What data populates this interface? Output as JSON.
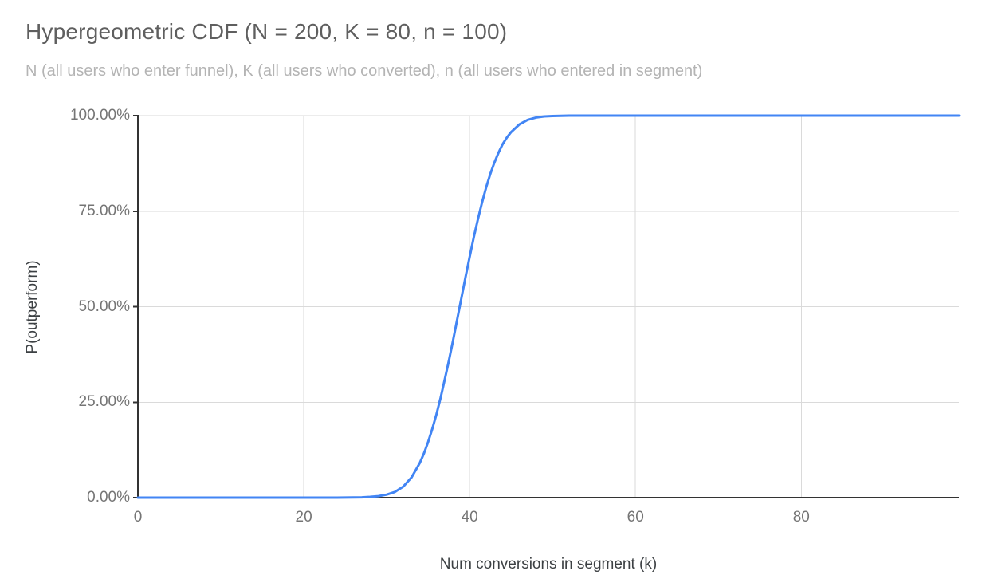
{
  "chart_data": {
    "type": "line",
    "title": "Hypergeometric CDF (N = 200, K = 80, n = 100)",
    "subtitle": "N (all users who enter funnel), K (all users who converted), n (all users who entered in segment)",
    "xlabel": "Num conversions in segment (k)",
    "ylabel": "P(outperform)",
    "xlim": [
      0,
      99
    ],
    "ylim": [
      0,
      1
    ],
    "x_ticks": [
      0,
      20,
      40,
      60,
      80
    ],
    "y_ticks": [
      0,
      0.25,
      0.5,
      0.75,
      1
    ],
    "y_tick_labels": [
      "0.00%",
      "25.00%",
      "50.00%",
      "75.00%",
      "100.00%"
    ],
    "grid": true,
    "legend_position": "none",
    "distribution_params": {
      "N": 200,
      "K": 80,
      "n": 100
    },
    "series": [
      {
        "name": "P(outperform)",
        "points": [
          [
            0,
            0
          ],
          [
            5,
            0
          ],
          [
            10,
            0
          ],
          [
            15,
            0
          ],
          [
            20,
            0
          ],
          [
            22,
            0
          ],
          [
            24,
            0.0001
          ],
          [
            25,
            0.0002
          ],
          [
            26,
            0.0004
          ],
          [
            27,
            0.0009
          ],
          [
            28,
            0.002
          ],
          [
            29,
            0.004
          ],
          [
            30,
            0.008
          ],
          [
            31,
            0.015
          ],
          [
            32,
            0.029
          ],
          [
            33,
            0.053
          ],
          [
            34,
            0.091
          ],
          [
            34.5,
            0.116
          ],
          [
            35,
            0.146
          ],
          [
            35.5,
            0.18
          ],
          [
            36,
            0.218
          ],
          [
            36.5,
            0.261
          ],
          [
            37,
            0.309
          ],
          [
            37.5,
            0.359
          ],
          [
            38,
            0.412
          ],
          [
            38.5,
            0.467
          ],
          [
            39,
            0.522
          ],
          [
            39.5,
            0.577
          ],
          [
            40,
            0.63
          ],
          [
            40.5,
            0.682
          ],
          [
            41,
            0.729
          ],
          [
            41.5,
            0.773
          ],
          [
            42,
            0.813
          ],
          [
            42.5,
            0.848
          ],
          [
            43,
            0.878
          ],
          [
            43.5,
            0.904
          ],
          [
            44,
            0.926
          ],
          [
            44.5,
            0.943
          ],
          [
            45,
            0.957
          ],
          [
            46,
            0.977
          ],
          [
            47,
            0.989
          ],
          [
            48,
            0.995
          ],
          [
            49,
            0.998
          ],
          [
            50,
            0.999
          ],
          [
            51,
            0.9996
          ],
          [
            52,
            0.9999
          ],
          [
            53,
            1
          ],
          [
            55,
            1
          ],
          [
            60,
            1
          ],
          [
            65,
            1
          ],
          [
            70,
            1
          ],
          [
            75,
            1
          ],
          [
            80,
            1
          ],
          [
            85,
            1
          ],
          [
            90,
            1
          ],
          [
            95,
            1
          ],
          [
            99,
            1
          ]
        ]
      }
    ]
  },
  "colors": {
    "title": "#5f5f5f",
    "subtitle": "#b4b4b4",
    "axis_title": "#3c4043",
    "tick_label": "#757575",
    "gridline": "#dadada",
    "axis_line": "#333333",
    "series_line": "#4285f4",
    "background": "#ffffff"
  }
}
